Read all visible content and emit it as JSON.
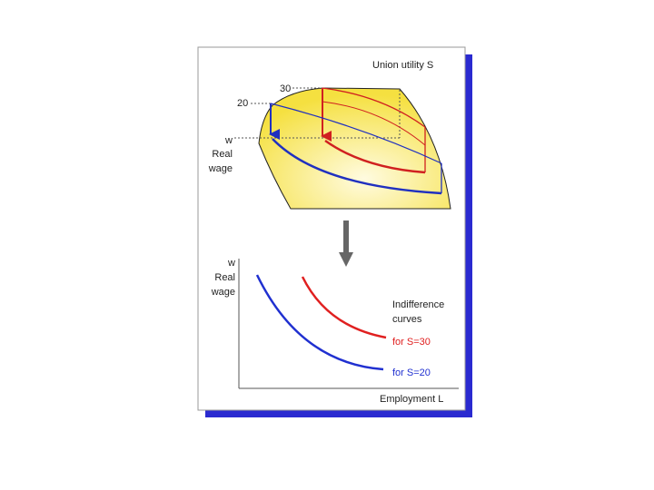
{
  "top_panel": {
    "title": "Union utility S",
    "level_high": "30",
    "level_low": "20",
    "axis_label": [
      "w",
      "Real",
      "wage"
    ]
  },
  "bottom_panel": {
    "axis_label": [
      "w",
      "Real",
      "wage"
    ],
    "legend_title": [
      "Indifference",
      "curves"
    ],
    "curve_high": "for S=30",
    "curve_low": "for S=20",
    "x_label": "Employment L"
  }
}
